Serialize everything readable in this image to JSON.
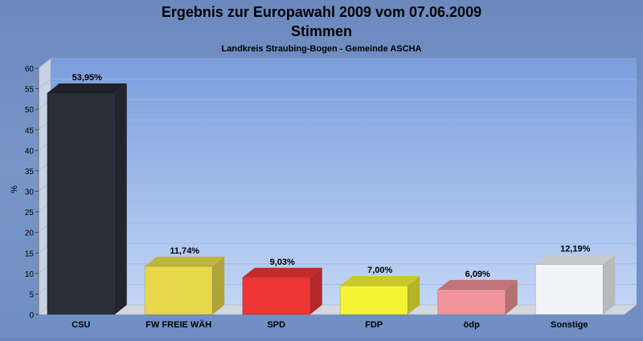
{
  "chart_data": {
    "type": "bar",
    "title": "Ergebnis zur Europawahl 2009 vom 07.06.2009",
    "subtitle": "Stimmen",
    "subsubtitle": "Landkreis Straubing-Bogen - Gemeinde ASCHA",
    "ylabel": "%",
    "xlabel": "",
    "ylim": [
      0,
      60
    ],
    "yticks": [
      0,
      5,
      10,
      15,
      20,
      25,
      30,
      35,
      40,
      45,
      50,
      55,
      60
    ],
    "grid": true,
    "categories": [
      "CSU",
      "FW FREIE WÄH",
      "SPD",
      "FDP",
      "ödp",
      "Sonstige"
    ],
    "values": [
      53.95,
      11.74,
      9.03,
      7.0,
      6.09,
      12.19
    ],
    "data_labels": [
      "53,95%",
      "11,74%",
      "9,03%",
      "7,00%",
      "6,09%",
      "12,19%"
    ],
    "colors": [
      "#2a2e38",
      "#e8d84a",
      "#ee3535",
      "#f4f434",
      "#f0959a",
      "#f3f4f8"
    ],
    "colors_top": [
      "#1e222b",
      "#bdb43a",
      "#c42a2a",
      "#c9c928",
      "#c27479",
      "#c8c9cd"
    ],
    "colors_side": [
      "#22252d",
      "#aea43a",
      "#b52828",
      "#b4b428",
      "#b3706f",
      "#b9babd"
    ]
  }
}
